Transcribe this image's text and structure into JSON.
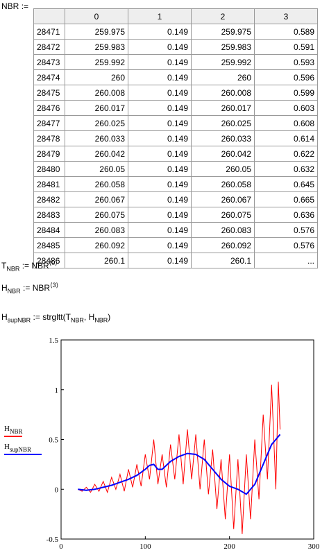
{
  "table": {
    "name": "NBR",
    "op": ":=",
    "columns": [
      0,
      1,
      2,
      3
    ],
    "rows": [
      [
        28471,
        259.975,
        0.149,
        259.975,
        0.589
      ],
      [
        28472,
        259.983,
        0.149,
        259.983,
        0.591
      ],
      [
        28473,
        259.992,
        0.149,
        259.992,
        0.593
      ],
      [
        28474,
        260,
        0.149,
        260,
        0.596
      ],
      [
        28475,
        260.008,
        0.149,
        260.008,
        0.599
      ],
      [
        28476,
        260.017,
        0.149,
        260.017,
        0.603
      ],
      [
        28477,
        260.025,
        0.149,
        260.025,
        0.608
      ],
      [
        28478,
        260.033,
        0.149,
        260.033,
        0.614
      ],
      [
        28479,
        260.042,
        0.149,
        260.042,
        0.622
      ],
      [
        28480,
        260.05,
        0.149,
        260.05,
        0.632
      ],
      [
        28481,
        260.058,
        0.149,
        260.058,
        0.645
      ],
      [
        28482,
        260.067,
        0.149,
        260.067,
        0.665
      ],
      [
        28483,
        260.075,
        0.149,
        260.075,
        0.636
      ],
      [
        28484,
        260.083,
        0.149,
        260.083,
        0.576
      ],
      [
        28485,
        260.092,
        0.149,
        260.092,
        0.576
      ],
      [
        28486,
        260.1,
        0.149,
        260.1,
        "..."
      ]
    ]
  },
  "formulas": [
    {
      "lhs": "T",
      "lhs_sub": "NBR",
      "op": ":=",
      "rhs": "NBR",
      "rhs_sup": "⟨0⟩"
    },
    {
      "lhs": "H",
      "lhs_sub": "NBR",
      "op": ":=",
      "rhs": "NBR",
      "rhs_sup": "⟨3⟩"
    },
    {
      "lhs": "H",
      "lhs_sub": "supNBR",
      "op": ":=",
      "func": "strgltt",
      "args": [
        {
          "base": "T",
          "sub": "NBR"
        },
        {
          "base": "H",
          "sub": "NBR"
        }
      ]
    }
  ],
  "chart_data": {
    "type": "line",
    "xlim": [
      0,
      300
    ],
    "xticks": [
      0,
      100,
      200,
      300
    ],
    "ylim": [
      -0.5,
      1.5
    ],
    "yticks": [
      -0.5,
      0,
      0.5,
      1,
      1.5
    ],
    "series": [
      {
        "name": {
          "base": "H",
          "sub": "NBR"
        },
        "color": "#ff0000",
        "x": [
          20,
          25,
          30,
          35,
          40,
          45,
          50,
          55,
          60,
          65,
          70,
          75,
          80,
          85,
          90,
          95,
          100,
          105,
          110,
          115,
          120,
          125,
          130,
          135,
          140,
          145,
          150,
          155,
          160,
          165,
          170,
          175,
          180,
          185,
          190,
          195,
          200,
          205,
          210,
          215,
          220,
          225,
          230,
          235,
          240,
          245,
          250,
          255,
          258,
          260
        ],
        "values": [
          0,
          -0.02,
          0.02,
          -0.03,
          0.05,
          -0.02,
          0.08,
          -0.03,
          0.12,
          0,
          0.15,
          -0.02,
          0.2,
          0.02,
          0.25,
          0.03,
          0.35,
          0.1,
          0.5,
          0.05,
          0.35,
          0.02,
          0.45,
          0.1,
          0.55,
          0.05,
          0.6,
          0.1,
          0.55,
          0,
          0.5,
          -0.05,
          0.4,
          -0.2,
          0.3,
          -0.3,
          0.35,
          -0.4,
          0.3,
          -0.45,
          0.35,
          -0.3,
          0.5,
          -0.1,
          0.75,
          0.1,
          1.05,
          0,
          1.08,
          0.6
        ]
      },
      {
        "name": {
          "base": "H",
          "sub": "supNBR"
        },
        "color": "#0000ff",
        "x": [
          20,
          30,
          40,
          50,
          60,
          70,
          80,
          90,
          100,
          105,
          110,
          115,
          120,
          130,
          140,
          150,
          160,
          170,
          180,
          190,
          200,
          210,
          220,
          230,
          240,
          250,
          260
        ],
        "values": [
          0,
          -0.01,
          0,
          0.02,
          0.04,
          0.07,
          0.1,
          0.14,
          0.2,
          0.24,
          0.25,
          0.2,
          0.2,
          0.28,
          0.33,
          0.36,
          0.35,
          0.3,
          0.2,
          0.1,
          0.03,
          0,
          -0.05,
          0.05,
          0.25,
          0.45,
          0.55
        ]
      }
    ]
  }
}
